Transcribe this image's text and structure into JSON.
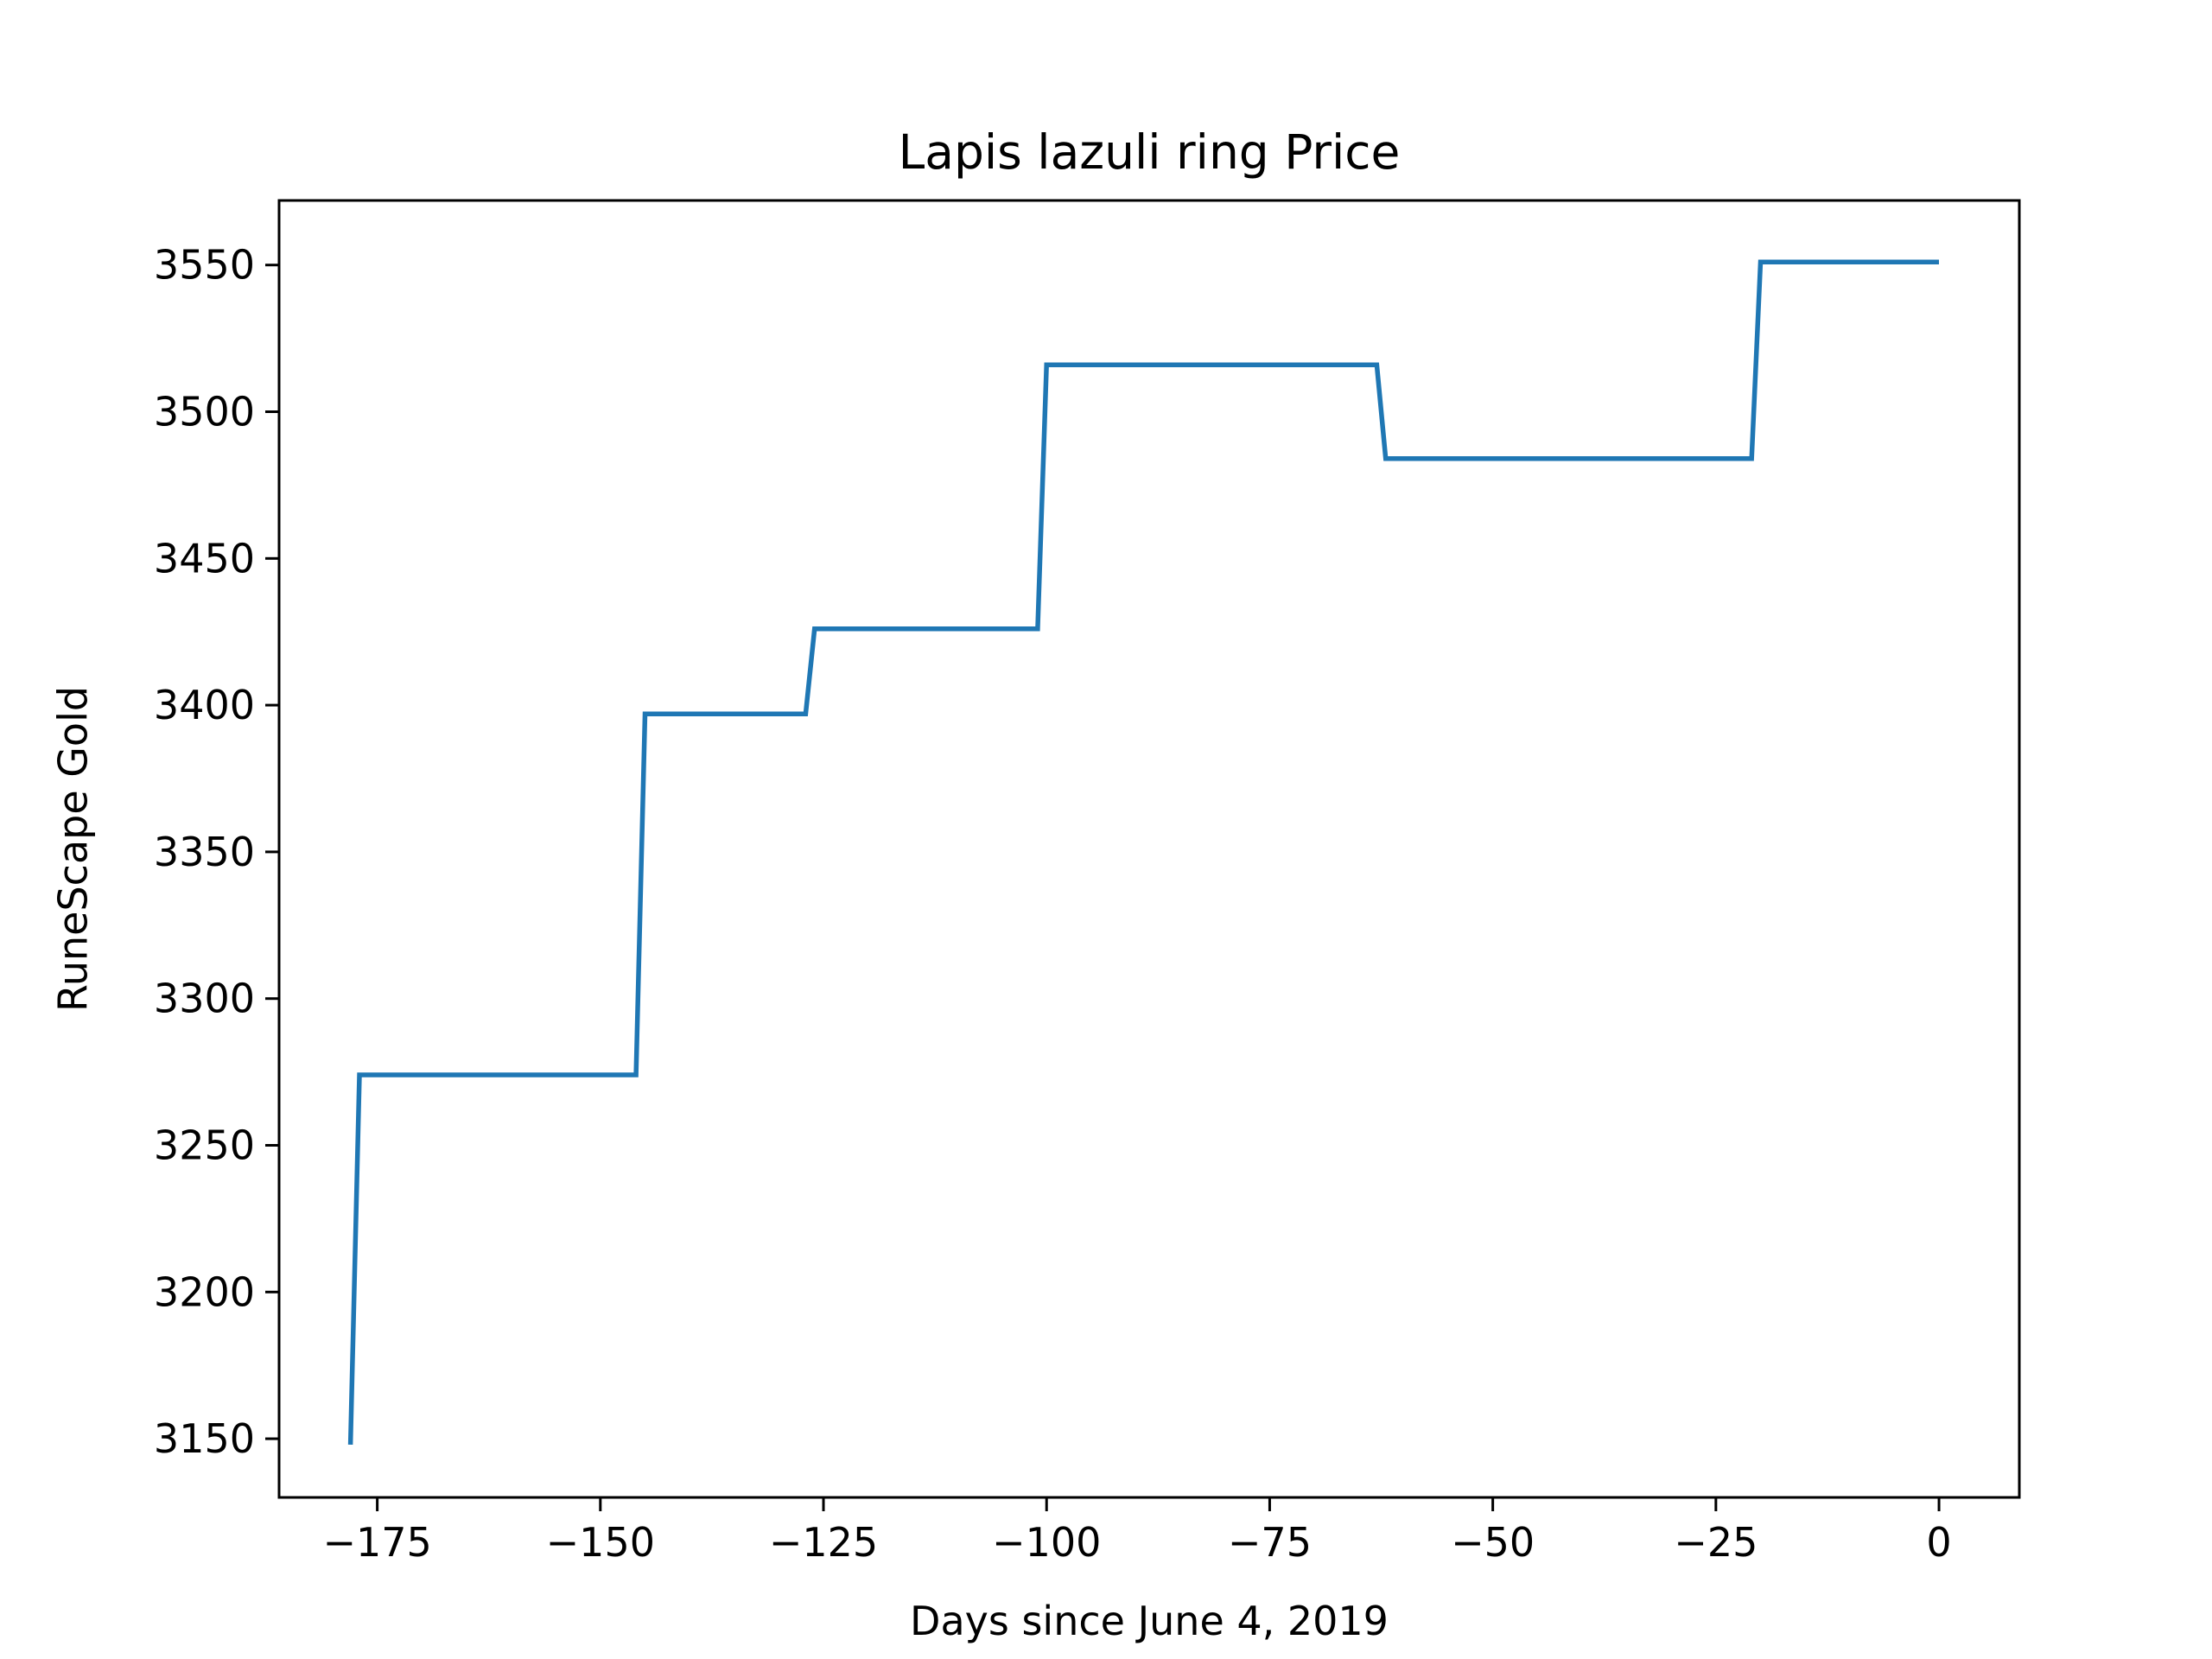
{
  "chart_data": {
    "type": "line",
    "title": "Lapis lazuli ring Price",
    "xlabel": "Days since June 4, 2019",
    "ylabel": "RuneScape Gold",
    "xlim": [
      -186,
      9
    ],
    "ylim": [
      3130,
      3572
    ],
    "xticks": [
      {
        "value": -175,
        "label": "−175"
      },
      {
        "value": -150,
        "label": "−150"
      },
      {
        "value": -125,
        "label": "−125"
      },
      {
        "value": -100,
        "label": "−100"
      },
      {
        "value": -75,
        "label": "−75"
      },
      {
        "value": -50,
        "label": "−50"
      },
      {
        "value": -25,
        "label": "−25"
      },
      {
        "value": 0,
        "label": "0"
      }
    ],
    "yticks": [
      {
        "value": 3150,
        "label": "3150"
      },
      {
        "value": 3200,
        "label": "3200"
      },
      {
        "value": 3250,
        "label": "3250"
      },
      {
        "value": 3300,
        "label": "3300"
      },
      {
        "value": 3350,
        "label": "3350"
      },
      {
        "value": 3400,
        "label": "3400"
      },
      {
        "value": 3450,
        "label": "3450"
      },
      {
        "value": 3500,
        "label": "3500"
      },
      {
        "value": 3550,
        "label": "3550"
      }
    ],
    "grid": false,
    "series": [
      {
        "color": "#1f77b4",
        "points": [
          [
            -178,
            3148
          ],
          [
            -177,
            3274
          ],
          [
            -146,
            3274
          ],
          [
            -145,
            3397
          ],
          [
            -127,
            3397
          ],
          [
            -126,
            3426
          ],
          [
            -101,
            3426
          ],
          [
            -100,
            3516
          ],
          [
            -63,
            3516
          ],
          [
            -62,
            3484
          ],
          [
            -21,
            3484
          ],
          [
            -20,
            3551
          ],
          [
            0,
            3551
          ]
        ]
      }
    ]
  }
}
